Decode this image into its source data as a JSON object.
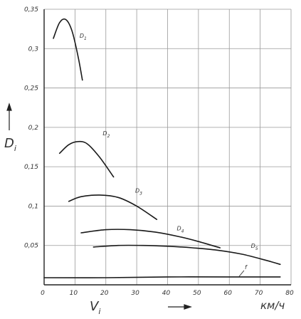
{
  "chart_data": {
    "type": "line",
    "xlabel": "V",
    "xlabel_subscript": "i",
    "ylabel": "D",
    "ylabel_subscript": "i",
    "x_unit": "км/ч",
    "xlim": [
      0,
      80
    ],
    "ylim": [
      0,
      0.35
    ],
    "x_ticks": [
      0,
      10,
      20,
      30,
      40,
      50,
      60,
      70,
      80
    ],
    "y_ticks": [
      0.05,
      0.1,
      0.15,
      0.2,
      0.25,
      0.3,
      0.35
    ],
    "x_tick_labels": [
      "0",
      "10",
      "20",
      "30",
      "40",
      "50",
      "60",
      "70",
      "80"
    ],
    "y_tick_labels": [
      "0,05",
      "0,1",
      "0,15",
      "0,2",
      "0,25",
      "0,3",
      "0,35"
    ],
    "grid": true,
    "series": [
      {
        "name": "D1",
        "label_base": "D",
        "label_sub": "1",
        "label_at": [
          11.5,
          0.314
        ],
        "x": [
          3,
          5,
          7,
          9,
          11,
          12.4
        ],
        "y": [
          0.313,
          0.333,
          0.337,
          0.323,
          0.29,
          0.26
        ]
      },
      {
        "name": "D2",
        "label_base": "D",
        "label_sub": "2",
        "label_at": [
          19,
          0.19
        ],
        "x": [
          5,
          8,
          11,
          14,
          18,
          22.5
        ],
        "y": [
          0.167,
          0.178,
          0.182,
          0.179,
          0.162,
          0.137
        ]
      },
      {
        "name": "D3",
        "label_base": "D",
        "label_sub": "3",
        "label_at": [
          29.5,
          0.117
        ],
        "x": [
          8,
          12,
          18,
          24,
          30,
          36.5
        ],
        "y": [
          0.106,
          0.112,
          0.114,
          0.111,
          0.1,
          0.083
        ]
      },
      {
        "name": "D4",
        "label_base": "D",
        "label_sub": "4",
        "label_at": [
          43,
          0.069
        ],
        "x": [
          12,
          20,
          28,
          36,
          44,
          50,
          57
        ],
        "y": [
          0.066,
          0.07,
          0.07,
          0.067,
          0.061,
          0.055,
          0.047
        ]
      },
      {
        "name": "D5",
        "label_base": "D",
        "label_sub": "5",
        "label_at": [
          67,
          0.047
        ],
        "x": [
          16,
          24,
          32,
          40,
          48,
          56,
          64,
          72,
          76.5
        ],
        "y": [
          0.048,
          0.05,
          0.05,
          0.049,
          0.047,
          0.044,
          0.039,
          0.031,
          0.026
        ]
      },
      {
        "name": "f",
        "label_base": "f",
        "label_sub": "",
        "label_at": [
          65,
          0.02
        ],
        "x": [
          0,
          20,
          40,
          60,
          76.5
        ],
        "y": [
          0.009,
          0.009,
          0.01,
          0.01,
          0.01
        ]
      }
    ]
  }
}
